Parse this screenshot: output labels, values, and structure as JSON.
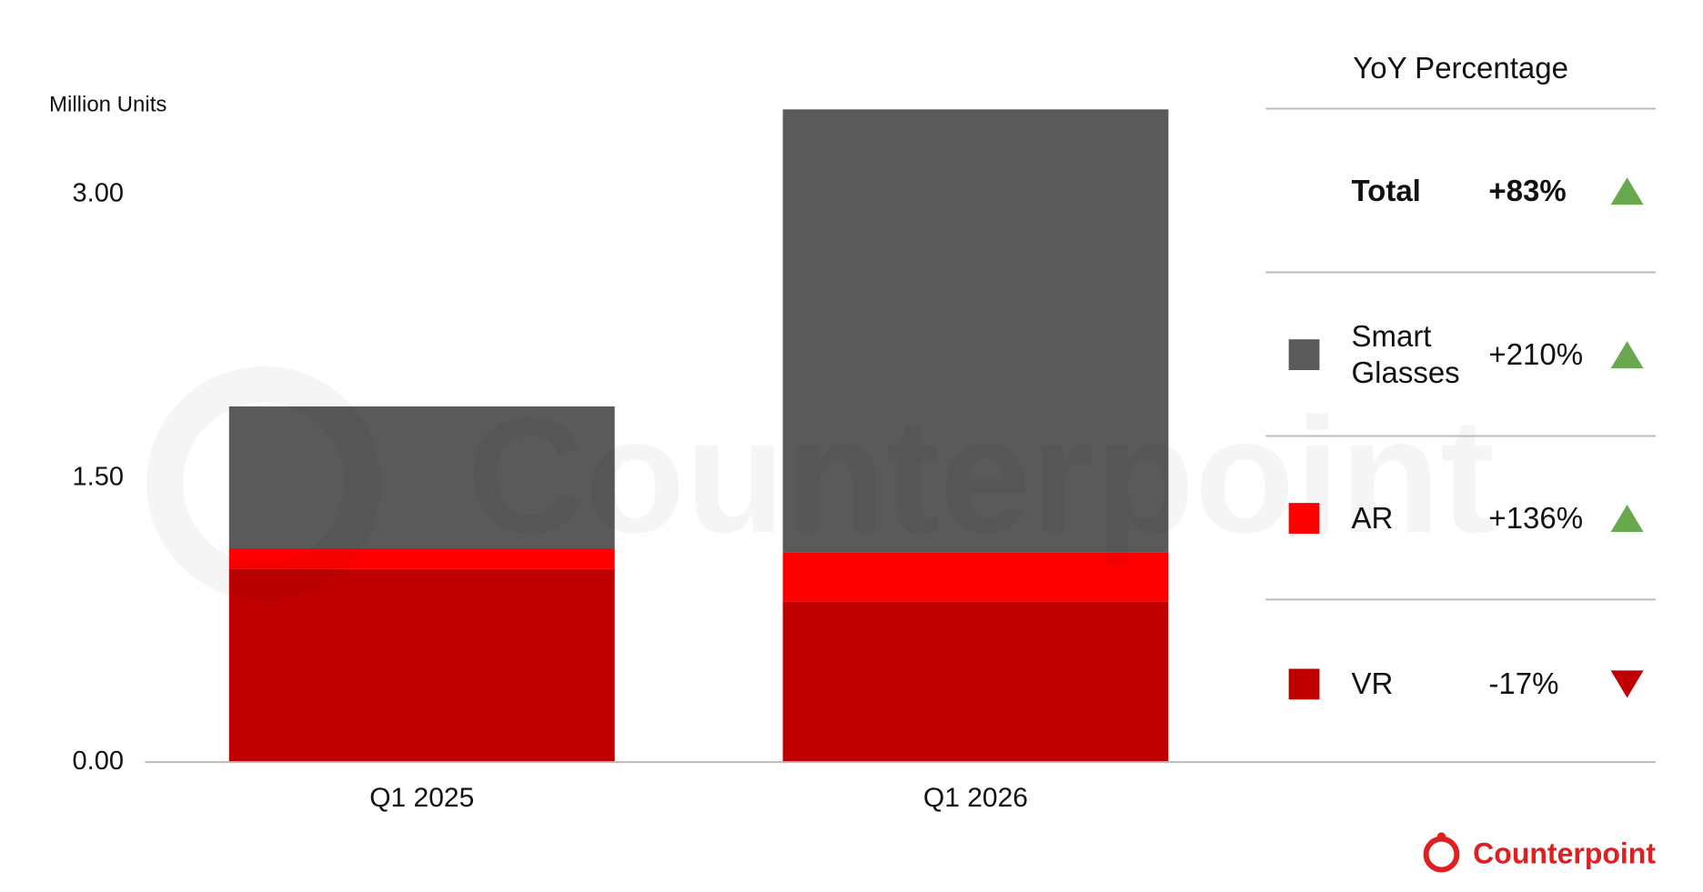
{
  "chart_data": {
    "type": "stacked_bar",
    "y_label": "Million Units",
    "categories": [
      "Q1 2025",
      "Q1 2026"
    ],
    "series": [
      {
        "name": "VR",
        "color": "#c00000",
        "values": [
          1.02,
          0.85
        ],
        "yoy": "-17%",
        "trend": "down"
      },
      {
        "name": "AR",
        "color": "#ff0000",
        "values": [
          0.11,
          0.26
        ],
        "yoy": "+136%",
        "trend": "up"
      },
      {
        "name": "Smart Glasses",
        "color": "#5a5a5a",
        "values": [
          0.75,
          2.34
        ],
        "yoy": "+210%",
        "trend": "up"
      }
    ],
    "ylim": [
      0,
      3.5
    ],
    "yticks": [
      {
        "value": 0,
        "label": "0.00"
      },
      {
        "value": 1.5,
        "label": "1.50"
      },
      {
        "value": 3,
        "label": "3.00"
      }
    ],
    "grid": false,
    "yoy_title": "YoY Percentage",
    "total_yoy": {
      "label": "Total",
      "change": "+83%",
      "trend": "up"
    },
    "brand": "Counterpoint"
  }
}
